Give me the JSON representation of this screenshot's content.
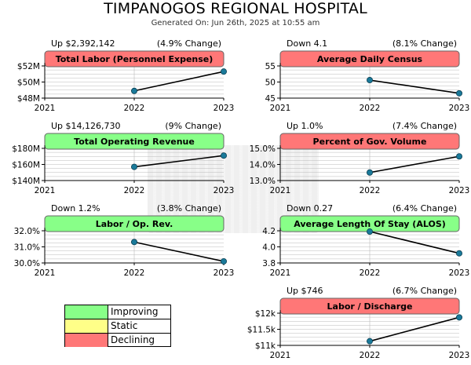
{
  "header": {
    "title": "TIMPANOGOS REGIONAL HOSPITAL",
    "generated": "Generated On: Jun 26th, 2025 at 10:55 am"
  },
  "colors": {
    "improving": "#88ff88",
    "static": "#ffff88",
    "declining": "#ff7777",
    "line": "#000000",
    "point": "#1a7a9a",
    "grid": "#bbbbbb",
    "axis": "#000000"
  },
  "legend": {
    "items": [
      {
        "label": "Improving",
        "status": "improving"
      },
      {
        "label": "Static",
        "status": "static"
      },
      {
        "label": "Declining",
        "status": "declining"
      }
    ]
  },
  "chart_data": [
    {
      "type": "line",
      "title": "Total Labor (Personnel Expense)",
      "status": "declining",
      "change_text": "Up $2,392,142",
      "pct_text": "(4.9% Change)",
      "x": [
        "2021",
        "2022",
        "2023"
      ],
      "values": [
        null,
        48.9,
        51.3
      ],
      "ylim": [
        48,
        52
      ],
      "yticks": [
        48,
        50,
        52
      ],
      "ytick_labels": [
        "$48M",
        "$50M",
        "$52M"
      ]
    },
    {
      "type": "line",
      "title": "Average Daily Census",
      "status": "declining",
      "change_text": "Down 4.1",
      "pct_text": "(8.1% Change)",
      "x": [
        "2021",
        "2022",
        "2023"
      ],
      "values": [
        null,
        50.6,
        46.5
      ],
      "ylim": [
        45,
        55
      ],
      "yticks": [
        45,
        50,
        55
      ],
      "ytick_labels": [
        "45",
        "50",
        "55"
      ]
    },
    {
      "type": "line",
      "title": "Total Operating Revenue",
      "status": "improving",
      "change_text": "Up $14,126,730",
      "pct_text": "(9% Change)",
      "x": [
        "2021",
        "2022",
        "2023"
      ],
      "values": [
        null,
        157,
        171
      ],
      "ylim": [
        140,
        180
      ],
      "yticks": [
        140,
        160,
        180
      ],
      "ytick_labels": [
        "$140M",
        "$160M",
        "$180M"
      ]
    },
    {
      "type": "line",
      "title": "Percent of Gov. Volume",
      "status": "declining",
      "change_text": "Up 1.0%",
      "pct_text": "(7.4% Change)",
      "x": [
        "2021",
        "2022",
        "2023"
      ],
      "values": [
        null,
        13.5,
        14.5
      ],
      "ylim": [
        13.0,
        15.0
      ],
      "yticks": [
        13.0,
        14.0,
        15.0
      ],
      "ytick_labels": [
        "13.0%",
        "14.0%",
        "15.0%"
      ]
    },
    {
      "type": "line",
      "title": "Labor / Op. Rev.",
      "status": "improving",
      "change_text": "Down 1.2%",
      "pct_text": "(3.8% Change)",
      "x": [
        "2021",
        "2022",
        "2023"
      ],
      "values": [
        null,
        31.3,
        30.1
      ],
      "ylim": [
        30.0,
        32.0
      ],
      "yticks": [
        30.0,
        31.0,
        32.0
      ],
      "ytick_labels": [
        "30.0%",
        "31.0%",
        "32.0%"
      ]
    },
    {
      "type": "line",
      "title": "Average Length Of Stay (ALOS)",
      "status": "improving",
      "change_text": "Down 0.27",
      "pct_text": "(6.4% Change)",
      "x": [
        "2021",
        "2022",
        "2023"
      ],
      "values": [
        null,
        4.19,
        3.92
      ],
      "ylim": [
        3.8,
        4.2
      ],
      "yticks": [
        3.8,
        4.0,
        4.2
      ],
      "ytick_labels": [
        "3.8",
        "4.0",
        "4.2"
      ]
    },
    {
      "type": "line",
      "title": "Labor / Discharge",
      "status": "declining",
      "change_text": "Up $746",
      "pct_text": "(6.7% Change)",
      "x": [
        "2021",
        "2022",
        "2023"
      ],
      "values": [
        null,
        11130,
        11870
      ],
      "ylim": [
        11000,
        12000
      ],
      "yticks": [
        11000,
        11500,
        12000
      ],
      "ytick_labels": [
        "$11k",
        "$11.5k",
        "$12k"
      ]
    }
  ]
}
